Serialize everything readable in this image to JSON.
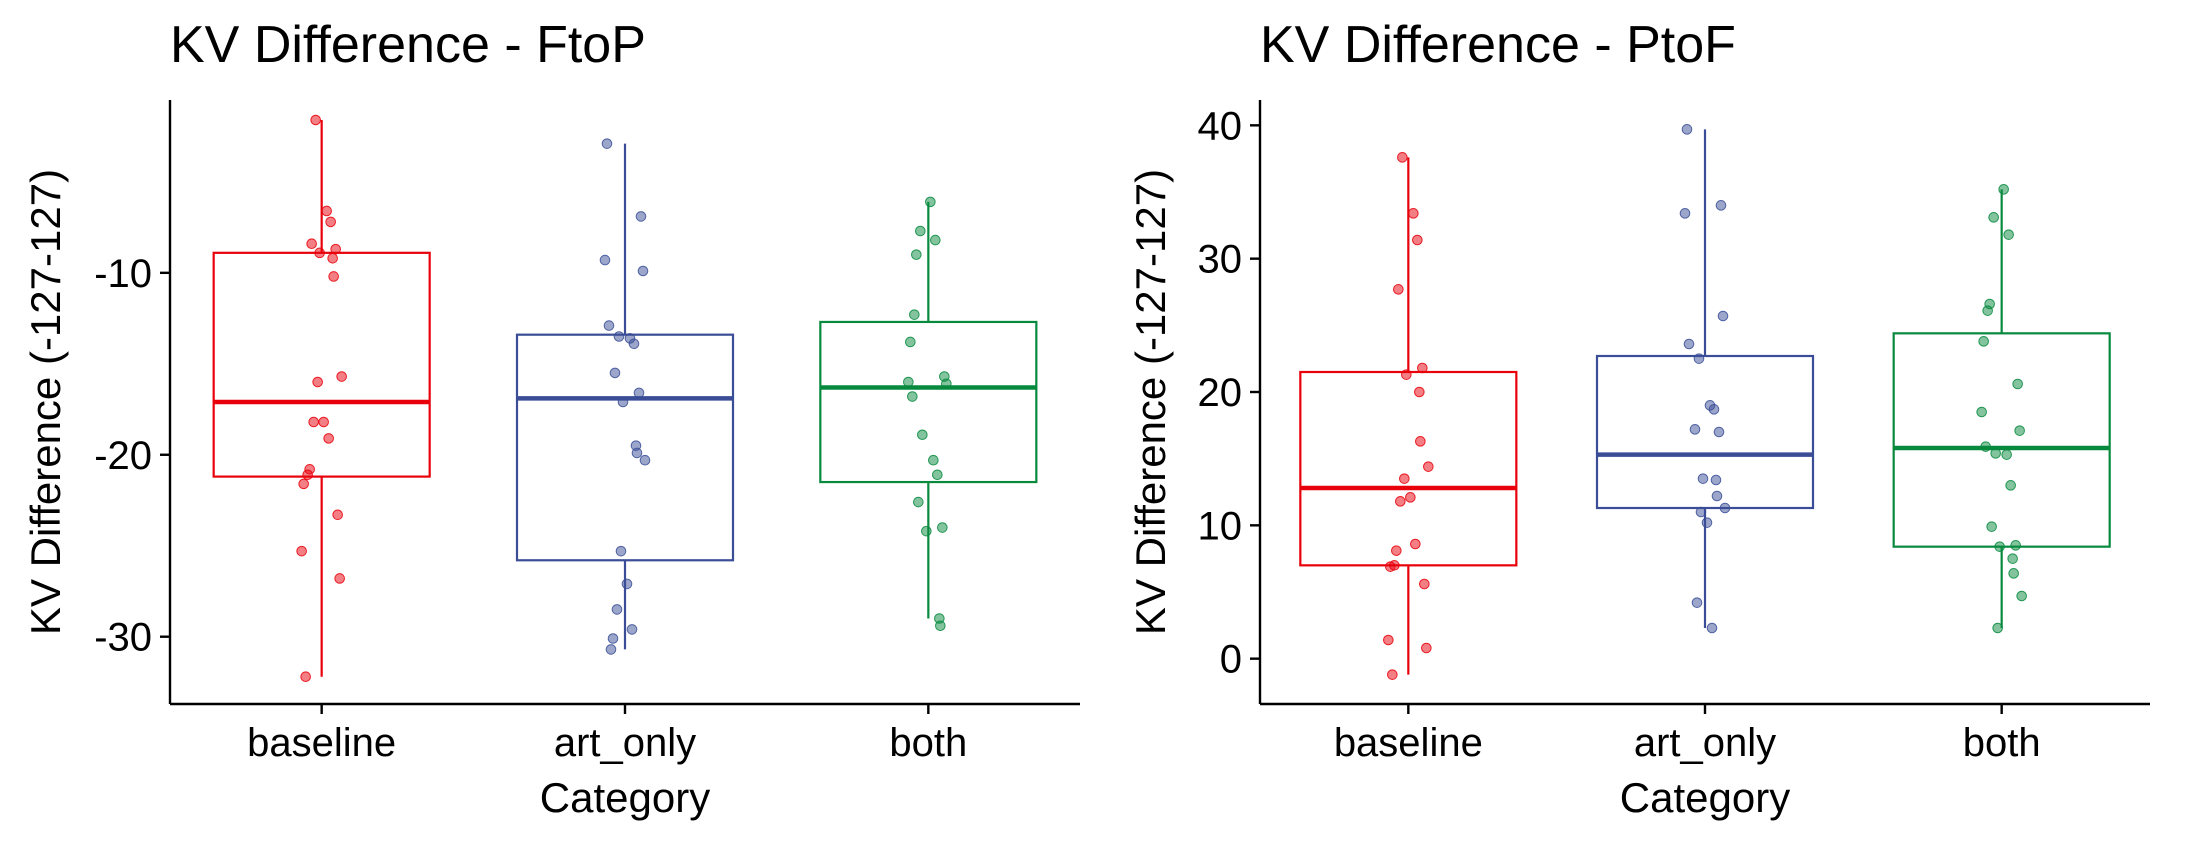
{
  "chart_data": [
    {
      "type": "box",
      "title": "KV Difference - FtoP",
      "xlabel": "Category",
      "ylabel": "KV Difference (-127-127)",
      "categories": [
        "baseline",
        "art_only",
        "both"
      ],
      "colors": [
        "#e8000b",
        "#3a4d96",
        "#078a3e"
      ],
      "ylim": [
        -33.7,
        -0.5
      ],
      "yticks": [
        -10,
        -20,
        -30
      ],
      "ytick_labels": [
        "-10",
        "-20",
        "-30"
      ],
      "grid": false,
      "boxes": [
        {
          "category": "baseline",
          "min": -32.2,
          "q1": -21.2,
          "median": -17.1,
          "q3": -8.9,
          "max": -1.6
        },
        {
          "category": "art_only",
          "min": -30.7,
          "q1": -25.8,
          "median": -16.9,
          "q3": -13.4,
          "max": -2.9
        },
        {
          "category": "both",
          "min": -29.0,
          "q1": -21.5,
          "median": -16.3,
          "q3": -12.7,
          "max": -6.1
        }
      ],
      "points": [
        [
          -1.6,
          -6.6,
          -7.2,
          -8.4,
          -8.7,
          -8.9,
          -9.2,
          -10.2,
          -15.7,
          -16.0,
          -18.2,
          -18.2,
          -19.1,
          -20.8,
          -21.1,
          -21.6,
          -23.3,
          -25.3,
          -26.8,
          -32.2
        ],
        [
          -2.9,
          -6.9,
          -9.3,
          -9.9,
          -12.9,
          -13.5,
          -13.6,
          -13.9,
          -15.5,
          -16.6,
          -17.1,
          -19.5,
          -19.9,
          -20.3,
          -25.3,
          -27.1,
          -28.5,
          -29.6,
          -30.1,
          -30.7
        ],
        [
          -6.1,
          -7.7,
          -8.2,
          -9.0,
          -12.3,
          -13.8,
          -15.7,
          -16.0,
          -16.1,
          -16.8,
          -18.9,
          -20.3,
          -21.1,
          -22.6,
          -24.0,
          -24.2,
          -29.0,
          -29.4
        ]
      ]
    },
    {
      "type": "box",
      "title": "KV Difference - PtoF",
      "xlabel": "Category",
      "ylabel": "KV Difference (-127-127)",
      "categories": [
        "baseline",
        "art_only",
        "both"
      ],
      "colors": [
        "#e8000b",
        "#3a4d96",
        "#078a3e"
      ],
      "ylim": [
        -3.4,
        41.9
      ],
      "yticks": [
        0,
        10,
        20,
        30,
        40
      ],
      "ytick_labels": [
        "0",
        "10",
        "20",
        "30",
        "40"
      ],
      "grid": false,
      "boxes": [
        {
          "category": "baseline",
          "min": -1.2,
          "q1": 7.0,
          "median": 12.8,
          "q3": 21.5,
          "max": 37.6
        },
        {
          "category": "art_only",
          "min": 2.3,
          "q1": 11.3,
          "median": 15.3,
          "q3": 22.7,
          "max": 39.7
        },
        {
          "category": "both",
          "min": 2.3,
          "q1": 8.4,
          "median": 15.8,
          "q3": 24.4,
          "max": 35.2
        }
      ],
      "points": [
        [
          37.6,
          33.4,
          31.4,
          27.7,
          21.8,
          21.3,
          20.0,
          16.3,
          14.4,
          13.5,
          12.1,
          11.8,
          8.6,
          8.1,
          7.0,
          6.9,
          5.6,
          1.4,
          0.8,
          -1.2
        ],
        [
          39.7,
          34.0,
          33.4,
          25.7,
          23.6,
          22.5,
          19.0,
          18.7,
          17.2,
          17.0,
          13.5,
          13.4,
          12.2,
          11.3,
          11.0,
          10.2,
          4.2,
          2.3
        ],
        [
          35.2,
          33.1,
          31.8,
          26.6,
          26.1,
          23.8,
          20.6,
          18.5,
          17.1,
          15.9,
          15.4,
          15.3,
          13.0,
          9.9,
          8.5,
          8.4,
          7.5,
          6.4,
          4.7,
          2.3
        ]
      ]
    }
  ]
}
